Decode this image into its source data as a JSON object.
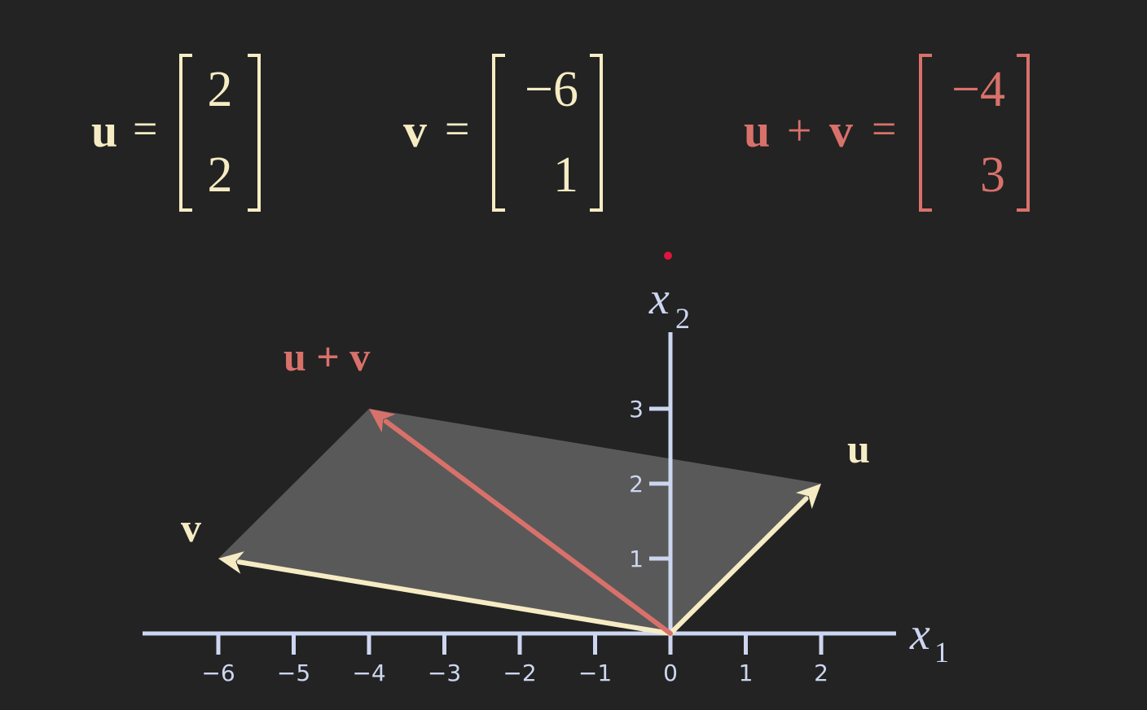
{
  "colors": {
    "background": "#232323",
    "axis": "#cdd6f0",
    "cream": "#f6ecc4",
    "salmon": "#d9716b",
    "parallelogram": "#595959",
    "dot": "#e0143c"
  },
  "equations": {
    "u": {
      "name": "u",
      "equals": "=",
      "top": "2",
      "bottom": "2"
    },
    "v": {
      "name": "v",
      "equals": "=",
      "top": "−6",
      "bottom": "1"
    },
    "sum": {
      "name_left": "u",
      "plus": "+",
      "name_right": "v",
      "equals": "=",
      "top": "−4",
      "bottom": "3"
    }
  },
  "chart_data": {
    "type": "vector-plot",
    "x_axis": {
      "label_base": "x",
      "label_sub": "1",
      "ticks": [
        -6,
        -5,
        -4,
        -3,
        -2,
        -1,
        0,
        1,
        2
      ],
      "tick_labels": [
        "−6",
        "−5",
        "−4",
        "−3",
        "−2",
        "−1",
        "0",
        "1",
        "2"
      ]
    },
    "y_axis": {
      "label_base": "x",
      "label_sub": "2",
      "ticks": [
        1,
        2,
        3
      ],
      "tick_labels": [
        "1",
        "2",
        "3"
      ]
    },
    "vectors": [
      {
        "name": "u",
        "x": 2,
        "y": 2,
        "color": "#f6ecc4"
      },
      {
        "name": "v",
        "x": -6,
        "y": 1,
        "color": "#f6ecc4"
      },
      {
        "name": "u + v",
        "x": -4,
        "y": 3,
        "color": "#d9716b"
      }
    ],
    "parallelogram": [
      [
        0,
        0
      ],
      [
        2,
        2
      ],
      [
        -4,
        3
      ],
      [
        -6,
        1
      ]
    ]
  }
}
